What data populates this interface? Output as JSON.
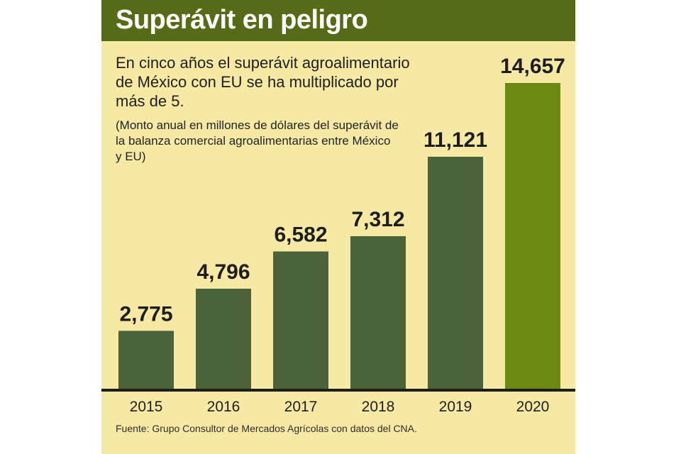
{
  "title": "Superávit en peligro",
  "headline": "En cinco años el superávit agroalimentario de México con EU se ha multiplicado por más de 5.",
  "note": "(Monto anual en millones de dólares del superávit de la balanza comercial agroalimentarias entre México y EU)",
  "source": "Fuente: Grupo Consultor de Mercados Agrícolas con datos del CNA.",
  "colors": {
    "background": "#f5e9a4",
    "title_bar": "#556b16",
    "bar": "#4a6339",
    "bar_highlight": "#6b8a10"
  },
  "chart_data": {
    "type": "bar",
    "categories": [
      "2015",
      "2016",
      "2017",
      "2018",
      "2019",
      "2020"
    ],
    "values": [
      2775,
      4796,
      6582,
      7312,
      11121,
      14657
    ],
    "value_labels": [
      "2,775",
      "4,796",
      "6,582",
      "7,312",
      "11,121",
      "14,657"
    ],
    "highlight_index": 5,
    "ylim": [
      0,
      14657
    ],
    "grid": false,
    "legend": "none"
  }
}
